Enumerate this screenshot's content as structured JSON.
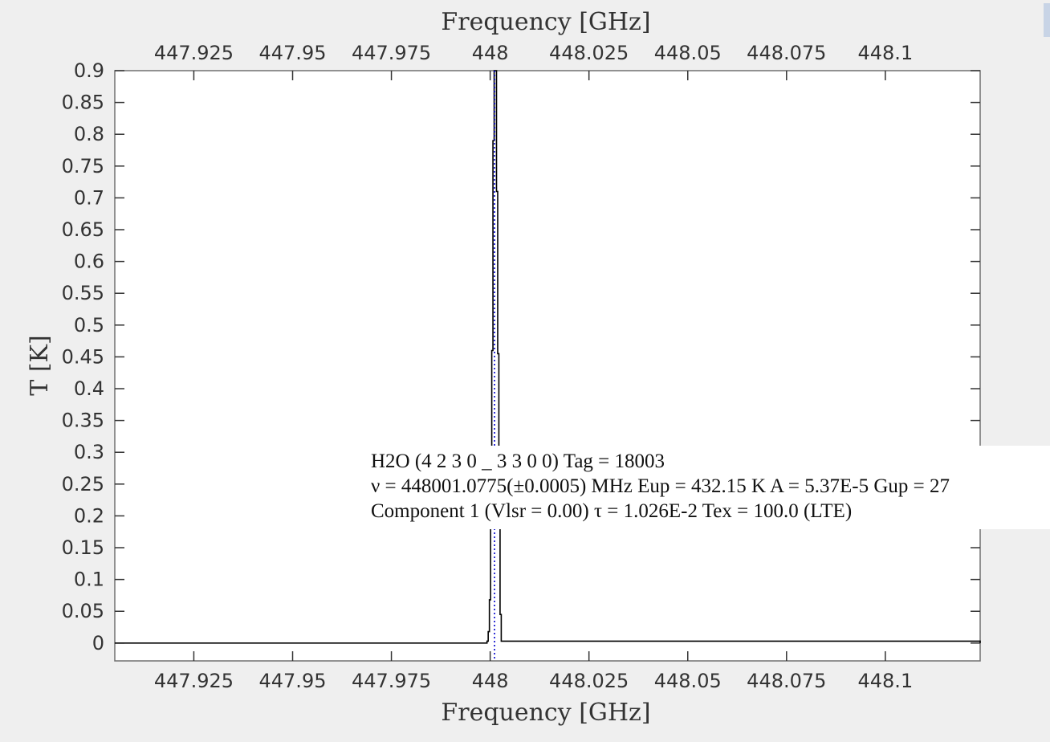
{
  "chart_data": {
    "type": "line",
    "xlabel_top": "Frequency [GHz]",
    "xlabel_bottom": "Frequency [GHz]",
    "ylabel": "T [K]",
    "xlim": [
      447.905,
      448.124
    ],
    "ylim": [
      -0.028,
      0.9
    ],
    "x_ticks": [
      447.925,
      447.95,
      447.975,
      448,
      448.025,
      448.05,
      448.075,
      448.1
    ],
    "x_tick_labels": [
      "447.925",
      "447.95",
      "447.975",
      "448",
      "448.025",
      "448.05",
      "448.075",
      "448.1"
    ],
    "y_ticks": [
      0,
      0.05,
      0.1,
      0.15,
      0.2,
      0.25,
      0.3,
      0.35,
      0.4,
      0.45,
      0.5,
      0.55,
      0.6,
      0.65,
      0.7,
      0.75,
      0.8,
      0.85,
      0.9
    ],
    "y_tick_labels": [
      "0",
      "0.05",
      "0.1",
      "0.15",
      "0.2",
      "0.25",
      "0.3",
      "0.35",
      "0.4",
      "0.45",
      "0.5",
      "0.55",
      "0.6",
      "0.65",
      "0.7",
      "0.75",
      "0.8",
      "0.85",
      "0.9"
    ],
    "grid": false,
    "series": [
      {
        "color": "#000000",
        "step": true,
        "x": [
          447.905,
          447.9992,
          447.9995,
          447.9998,
          448.0001,
          448.0004,
          448.0007,
          448.001,
          448.0013,
          448.0016,
          448.0019,
          448.0022,
          448.0025,
          448.0028,
          448.124
        ],
        "y": [
          0,
          0.003,
          0.018,
          0.068,
          0.2,
          0.46,
          0.79,
          0.95,
          0.95,
          0.71,
          0.455,
          0.2,
          0.045,
          0.003,
          0
        ]
      }
    ],
    "marker_line": {
      "x": 448.0011,
      "color": "#0000cc",
      "style": "dotted"
    }
  },
  "tooltip": {
    "line1": "H2O (4 2 3 0 _ 3 3 0 0) Tag = 18003",
    "line2": "ν = 448001.0775(±0.0005) MHz Eup = 432.15 K A = 5.37E-5 Gup = 27",
    "line3": "Component 1 (Vlsr = 0.00) τ = 1.026E-2 Tex = 100.0 (LTE)"
  }
}
